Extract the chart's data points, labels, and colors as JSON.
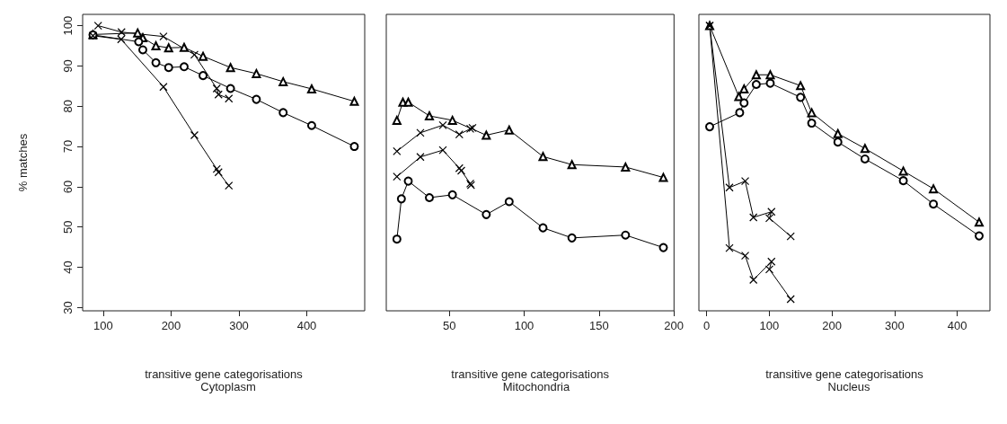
{
  "chart_data": [
    {
      "type": "line",
      "title": "Cytoplasm",
      "xlabel": "transitive gene categorisations",
      "ylabel": "% matches",
      "xlim": [
        69.6,
        485.4
      ],
      "xticks": [
        100,
        200,
        300,
        400
      ],
      "ylim": [
        29.2,
        102.8
      ],
      "yticks": [
        30,
        40,
        50,
        60,
        70,
        80,
        90,
        100
      ],
      "grid": false,
      "line_style": "solid",
      "series": [
        {
          "color": "#000000",
          "marker": "triangle",
          "x": [
            84.8,
            150.7,
            158.3,
            177.6,
            196.4,
            219.2,
            247.1,
            287.6,
            325.7,
            365.2,
            407.2,
            470.1
          ],
          "values": [
            97.8,
            98.2,
            97.0,
            95.0,
            94.5,
            94.6,
            92.4,
            89.6,
            88.1,
            86.1,
            84.3,
            81.2
          ]
        },
        {
          "color": "#000000",
          "marker": "circle",
          "x": [
            84.8,
            152.2,
            158.3,
            177.6,
            196.4,
            219.2,
            247.1,
            287.6,
            325.7,
            365.2,
            407.2,
            470.1
          ],
          "values": [
            97.7,
            96.0,
            94.0,
            90.8,
            89.6,
            89.8,
            87.6,
            84.4,
            81.7,
            78.4,
            75.2,
            70.0
          ]
        },
        {
          "color": "#000000",
          "marker": "cross",
          "x": [
            92.4,
            126.9,
            188.7,
            234.4,
            267.3,
            269.9,
            285.1
          ],
          "values": [
            100,
            98.4,
            97.3,
            92.8,
            84.4,
            82.9,
            81.9
          ]
        },
        {
          "color": "#000000",
          "marker": "cross",
          "x": [
            84.8,
            126.4,
            188.7,
            234.4,
            267.3,
            269.9,
            285.1
          ],
          "values": [
            97.5,
            96.6,
            84.8,
            72.8,
            64.4,
            63.6,
            60.3
          ]
        }
      ]
    },
    {
      "type": "line",
      "title": "Mitochondria",
      "xlabel": "transitive gene categorisations",
      "xlim": [
        7.9,
        200.1
      ],
      "xticks": [
        50,
        100,
        150,
        200
      ],
      "ylim": [
        29.2,
        102.8
      ],
      "yticks": [
        30,
        40,
        50,
        60,
        70,
        80,
        90,
        100
      ],
      "tick_labels": "x",
      "grid": false,
      "line_style": "solid",
      "series": [
        {
          "color": "#000000",
          "marker": "triangle",
          "x": [
            15,
            19,
            22.6,
            36.7,
            52.1,
            74.7,
            90,
            112.6,
            131.9,
            167.7,
            193
          ],
          "values": [
            76.5,
            81.0,
            81.0,
            77.6,
            76.5,
            72.8,
            74.1,
            67.5,
            65.5,
            64.9,
            62.3
          ]
        },
        {
          "color": "#000000",
          "marker": "circle",
          "x": [
            15,
            18,
            22.6,
            36.7,
            52.1,
            74.7,
            90,
            112.6,
            131.9,
            167.7,
            193
          ],
          "values": [
            47.0,
            57.0,
            61.4,
            57.3,
            58.0,
            53.1,
            56.3,
            49.8,
            47.3,
            48.0,
            44.9
          ]
        },
        {
          "color": "#000000",
          "marker": "cross",
          "x": [
            15,
            30.7,
            45.7,
            56.7,
            64.0,
            65.5
          ],
          "values": [
            68.8,
            73.4,
            75.3,
            73.0,
            74.4,
            74.6
          ]
        },
        {
          "color": "#000000",
          "marker": "cross",
          "x": [
            15,
            30.7,
            45.7,
            56.7,
            58.0,
            64.0,
            64.5
          ],
          "values": [
            62.5,
            67.4,
            69.1,
            64.6,
            64.0,
            60.8,
            60.4
          ]
        }
      ]
    },
    {
      "type": "line",
      "title": "Nucleus",
      "xlabel": "transitive gene categorisations",
      "xlim": [
        -12.2,
        452.2
      ],
      "xticks": [
        0,
        100,
        200,
        300,
        400
      ],
      "ylim": [
        29.2,
        102.8
      ],
      "yticks": [
        30,
        40,
        50,
        60,
        70,
        80,
        90,
        100
      ],
      "tick_labels": "x",
      "grid": false,
      "line_style": "solid",
      "series": [
        {
          "color": "#000000",
          "marker": "triangle",
          "x": [
            5,
            51.5,
            59.9,
            79.4,
            101.7,
            150,
            167.8,
            209.6,
            252.8,
            314,
            362,
            435
          ],
          "values": [
            100,
            82.4,
            84.3,
            87.8,
            87.8,
            85.1,
            78.4,
            73.2,
            69.5,
            63.9,
            59.5,
            51.2
          ]
        },
        {
          "color": "#000000",
          "marker": "circle",
          "x": [
            5,
            52.9,
            59.9,
            79.4,
            101.7,
            150,
            167.8,
            209.6,
            252.8,
            314,
            362,
            435
          ],
          "values": [
            74.9,
            78.4,
            80.8,
            85.4,
            85.7,
            82.2,
            75.8,
            71.1,
            66.9,
            61.5,
            55.7,
            47.8
          ]
        },
        {
          "color": "#000000",
          "marker": "cross",
          "x": [
            5,
            36.6,
            61.7,
            74.8,
            103.6,
            100.3,
            134.3
          ],
          "values": [
            100,
            59.8,
            61.4,
            52.4,
            53.8,
            52.2,
            47.7
          ]
        },
        {
          "color": "#000000",
          "marker": "cross",
          "x": [
            5,
            36.6,
            61.7,
            74.8,
            103.6,
            100.3,
            134.3
          ],
          "values": [
            100,
            44.8,
            42.9,
            36.9,
            41.4,
            39.5,
            32.1
          ]
        }
      ]
    }
  ]
}
